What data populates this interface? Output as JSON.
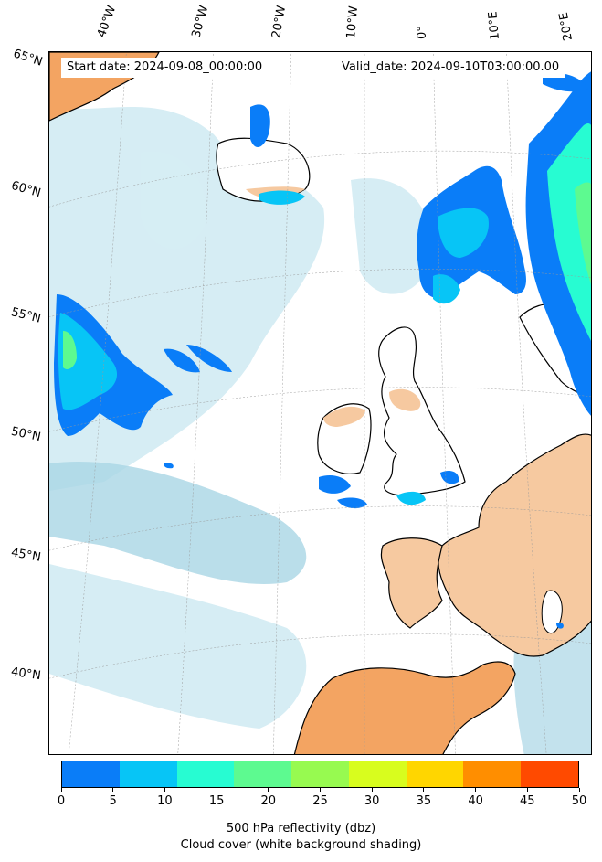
{
  "header": {
    "start_date": "Start date: 2024-09-08_00:00:00",
    "valid_date": "Valid_date: 2024-09-10T03:00:00.00"
  },
  "lon_labels": [
    "40°W",
    "30°W",
    "20°W",
    "10°W",
    "0°",
    "10°E",
    "20°E"
  ],
  "lat_labels": [
    "65°N",
    "60°N",
    "55°N",
    "50°N",
    "45°N",
    "40°N"
  ],
  "colorbar": {
    "ticks": [
      "0",
      "5",
      "10",
      "15",
      "20",
      "25",
      "30",
      "35",
      "40",
      "45",
      "50"
    ],
    "colors": [
      "#0a7df8",
      "#07c5f6",
      "#27fcd2",
      "#5dfa90",
      "#97fa50",
      "#d8fd1e",
      "#ffd600",
      "#ff8e00",
      "#ff4a00"
    ],
    "label_primary": "500 hPa reflectivity (dbz)",
    "label_secondary": "Cloud cover (white background shading)"
  },
  "palette": {
    "cloud": "#a9d6e5",
    "cloud_light": "#d6edf4",
    "land_low_refl": "#f3a462",
    "land_low_refl_light": "#f6c9a0",
    "coastline": "#000000",
    "gridline": "#9a9a9a"
  }
}
